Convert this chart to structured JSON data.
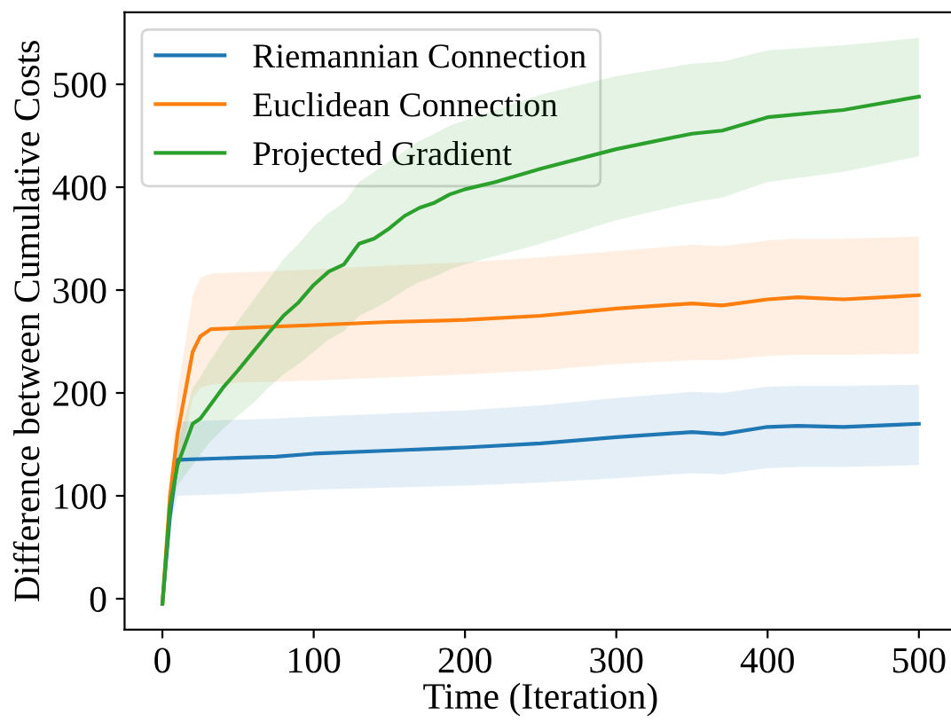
{
  "chart_data": {
    "type": "line",
    "xlabel": "Time (Iteration)",
    "ylabel": "Difference between Cumulative Costs",
    "xlim": [
      -25,
      525
    ],
    "ylim": [
      -30,
      570
    ],
    "xticks": [
      0,
      100,
      200,
      300,
      400,
      500
    ],
    "yticks": [
      0,
      100,
      200,
      300,
      400,
      500
    ],
    "grid": false,
    "legend": "top left",
    "marker": "none",
    "line_style": "solid",
    "series": [
      {
        "name": "Riemannian Connection",
        "color": "#1f77b4",
        "x": [
          0,
          5,
          10,
          50,
          75,
          100,
          150,
          200,
          250,
          300,
          350,
          370,
          400,
          420,
          450,
          500
        ],
        "values": [
          -5,
          80,
          135,
          137,
          138,
          141,
          144,
          147,
          151,
          157,
          162,
          160,
          167,
          168,
          167,
          170
        ],
        "lower": [
          -5,
          70,
          100,
          102,
          104,
          106,
          108,
          110,
          113,
          117,
          122,
          121,
          127,
          128,
          128,
          130
        ],
        "upper": [
          -5,
          95,
          172,
          174,
          175,
          177,
          180,
          183,
          188,
          195,
          201,
          200,
          206,
          207,
          207,
          208
        ]
      },
      {
        "name": "Euclidean Connection",
        "color": "#ff7f0e",
        "x": [
          0,
          5,
          10,
          20,
          25,
          32,
          50,
          100,
          150,
          200,
          250,
          300,
          350,
          370,
          400,
          420,
          450,
          500
        ],
        "values": [
          -5,
          100,
          160,
          240,
          255,
          262,
          263,
          266,
          269,
          271,
          275,
          282,
          287,
          285,
          291,
          293,
          291,
          295
        ],
        "lower": [
          -5,
          85,
          120,
          195,
          205,
          208,
          210,
          212,
          215,
          218,
          222,
          228,
          232,
          232,
          236,
          237,
          237,
          238
        ],
        "upper": [
          -5,
          115,
          200,
          295,
          312,
          316,
          317,
          320,
          324,
          327,
          332,
          338,
          344,
          343,
          348,
          350,
          350,
          352
        ]
      },
      {
        "name": "Projected Gradient",
        "color": "#2ca02c",
        "x": [
          0,
          5,
          10,
          20,
          25,
          30,
          40,
          50,
          60,
          70,
          80,
          90,
          100,
          110,
          120,
          130,
          140,
          150,
          160,
          170,
          180,
          190,
          200,
          220,
          250,
          300,
          350,
          370,
          400,
          450,
          500
        ],
        "values": [
          -5,
          90,
          130,
          170,
          175,
          185,
          205,
          222,
          240,
          258,
          275,
          288,
          305,
          318,
          325,
          345,
          350,
          360,
          372,
          380,
          385,
          393,
          398,
          405,
          418,
          437,
          452,
          455,
          468,
          475,
          488
        ],
        "lower": [
          -5,
          80,
          110,
          130,
          140,
          150,
          165,
          178,
          190,
          205,
          218,
          228,
          240,
          252,
          260,
          275,
          282,
          290,
          300,
          308,
          313,
          320,
          325,
          333,
          345,
          368,
          385,
          390,
          405,
          415,
          430
        ],
        "upper": [
          -5,
          100,
          150,
          205,
          215,
          228,
          250,
          270,
          290,
          310,
          330,
          345,
          362,
          375,
          385,
          405,
          415,
          425,
          435,
          445,
          452,
          460,
          465,
          475,
          490,
          508,
          520,
          522,
          533,
          538,
          545
        ]
      }
    ]
  }
}
